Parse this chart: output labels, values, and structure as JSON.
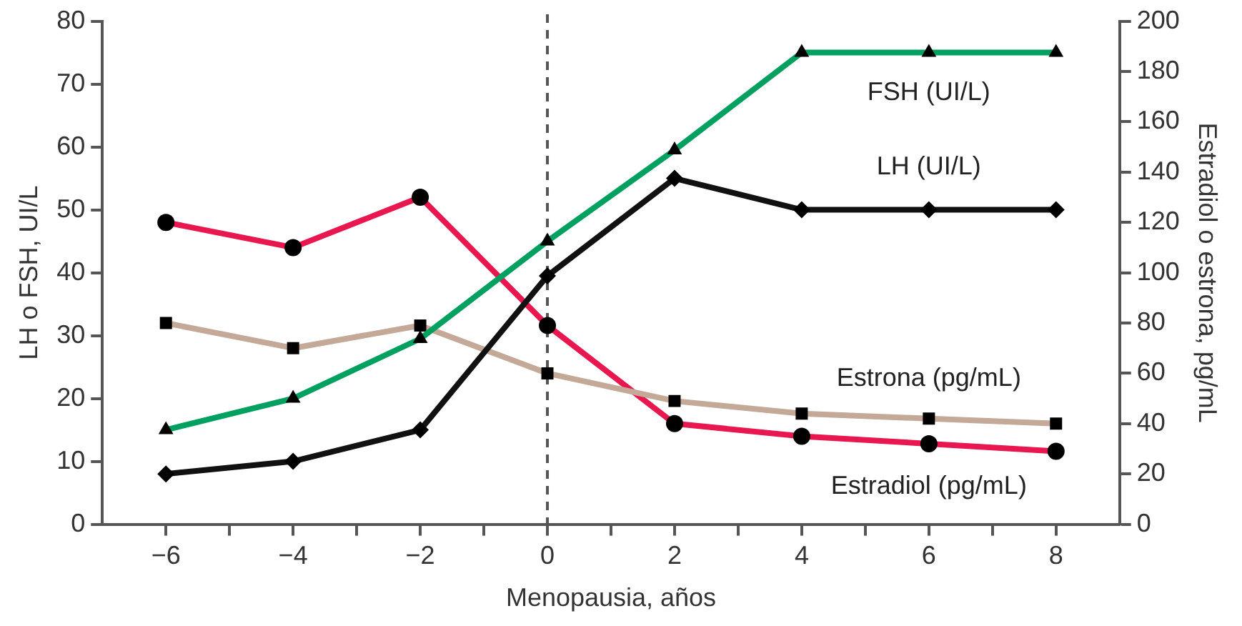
{
  "chart_data": {
    "type": "line",
    "xlabel": "Menopausia, años",
    "ylabel": "LH o FSH, UI/L",
    "y2label": "Estradiol o estrona, pg/mL",
    "x": [
      -6,
      -4,
      -2,
      0,
      2,
      4,
      6,
      8
    ],
    "xlim": [
      -7,
      9
    ],
    "xticks": [
      -6,
      {
        "value": -5,
        "label": null
      },
      -4,
      {
        "value": -3,
        "label": null
      },
      -2,
      {
        "value": -1,
        "label": null
      },
      0,
      {
        "value": 1,
        "label": null
      },
      2,
      {
        "value": 3,
        "label": null
      },
      4,
      {
        "value": 5,
        "label": null
      },
      6,
      {
        "value": 7,
        "label": null
      },
      8
    ],
    "ylim": [
      0,
      80
    ],
    "yticks": [
      0,
      10,
      20,
      30,
      40,
      50,
      60,
      70,
      80
    ],
    "y2lim": [
      0,
      200
    ],
    "y2ticks": [
      0,
      20,
      40,
      60,
      80,
      100,
      120,
      140,
      160,
      180,
      200
    ],
    "series": [
      {
        "name": "FSH (UI/L)",
        "color": "#00a060",
        "marker": "triangle",
        "values": [
          15,
          20,
          29.5,
          45,
          59.5,
          75,
          75,
          75
        ]
      },
      {
        "name": "LH (UI/L)",
        "color": "#111111",
        "marker": "diamond",
        "values": [
          8,
          10,
          15,
          39.5,
          55,
          50,
          50,
          50
        ]
      },
      {
        "name": "Estrona (pg/mL)",
        "color": "#c4a898",
        "marker": "square",
        "axis": "y2",
        "values": [
          80,
          70,
          79,
          60,
          49,
          44,
          42,
          40
        ]
      },
      {
        "name": "Estradiol (pg/mL)",
        "color": "#e8174f",
        "marker": "circle",
        "axis": "y2",
        "values": [
          120,
          110,
          130,
          79,
          40,
          35,
          32,
          29
        ]
      }
    ],
    "ref_lines": [
      {
        "axis": "x",
        "value": 0,
        "color": "#555555",
        "line_style": "dashed"
      }
    ],
    "grid": false,
    "legend": false,
    "line_style": "solid"
  }
}
